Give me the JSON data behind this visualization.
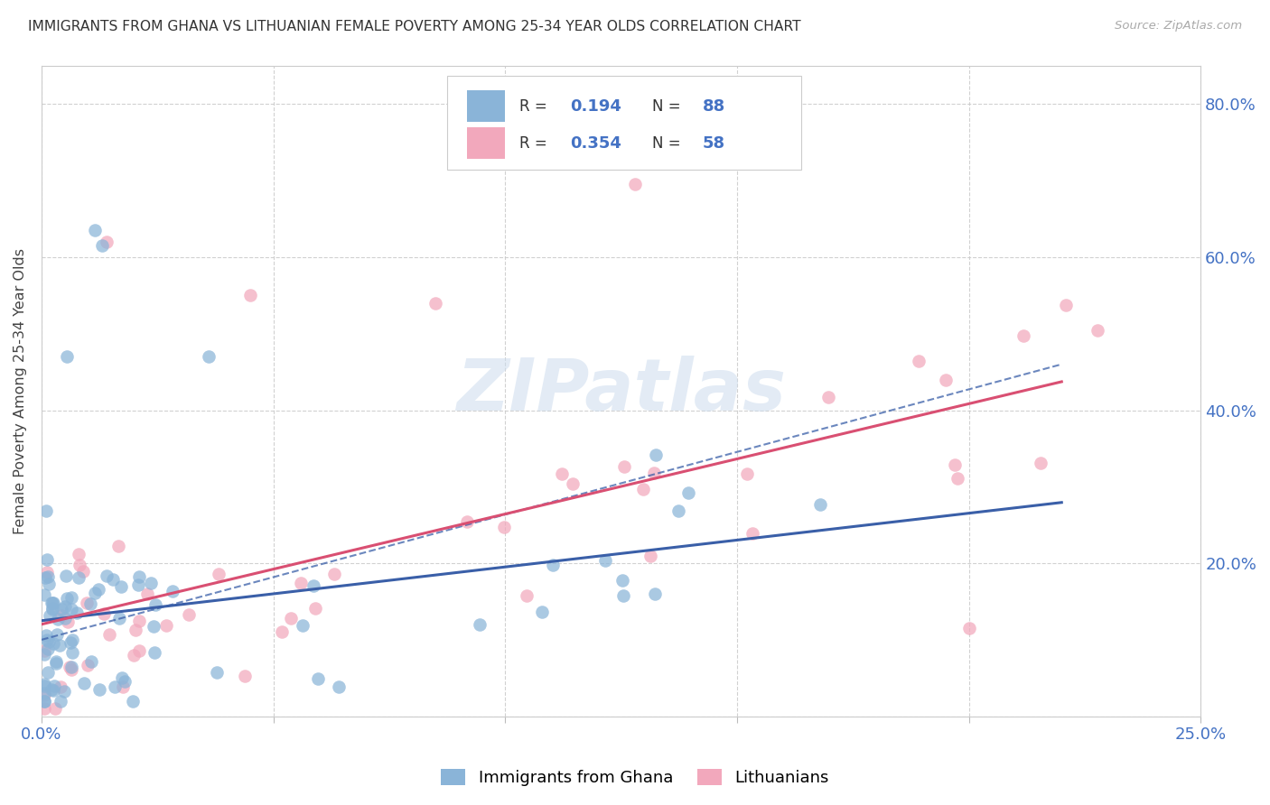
{
  "title": "IMMIGRANTS FROM GHANA VS LITHUANIAN FEMALE POVERTY AMONG 25-34 YEAR OLDS CORRELATION CHART",
  "source": "Source: ZipAtlas.com",
  "ylabel": "Female Poverty Among 25-34 Year Olds",
  "xlim": [
    0,
    0.25
  ],
  "ylim": [
    0,
    0.85
  ],
  "ghana_color": "#8ab4d8",
  "lithuanian_color": "#f2a8bc",
  "ghana_line_color": "#3a5fa8",
  "lithuanian_line_color": "#d94f72",
  "watermark_text": "ZIPatlas",
  "ghana_R": "0.194",
  "ghana_N": "88",
  "lithuanian_R": "0.354",
  "lithuanian_N": "58",
  "background_color": "#ffffff",
  "grid_color": "#cccccc",
  "tick_color": "#4472c4",
  "title_color": "#333333",
  "legend_label_ghana": "Immigrants from Ghana",
  "legend_label_lith": "Lithuanians",
  "ghana_seed": 42,
  "lith_seed": 99
}
